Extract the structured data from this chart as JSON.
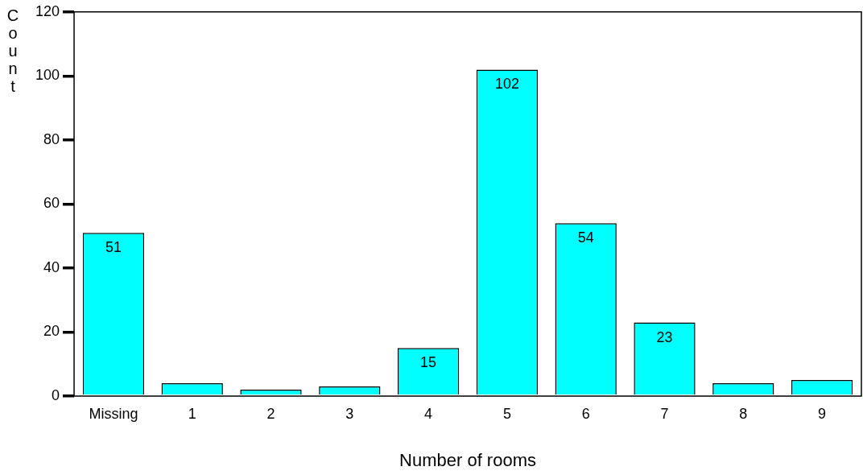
{
  "chart_data": {
    "type": "bar",
    "xlabel": "Number of rooms",
    "ylabel": "Count",
    "categories": [
      "Missing",
      "1",
      "2",
      "3",
      "4",
      "5",
      "6",
      "7",
      "8",
      "9"
    ],
    "values": [
      51,
      4,
      2,
      3,
      15,
      102,
      54,
      23,
      4,
      5
    ],
    "value_labels": [
      "51",
      null,
      null,
      null,
      "15",
      "102",
      "54",
      "23",
      null,
      null
    ],
    "color": "#00ffff",
    "ylim": [
      0,
      120
    ],
    "yticks": [
      0,
      20,
      40,
      60,
      80,
      100,
      120
    ],
    "grid": false,
    "legend": false
  }
}
